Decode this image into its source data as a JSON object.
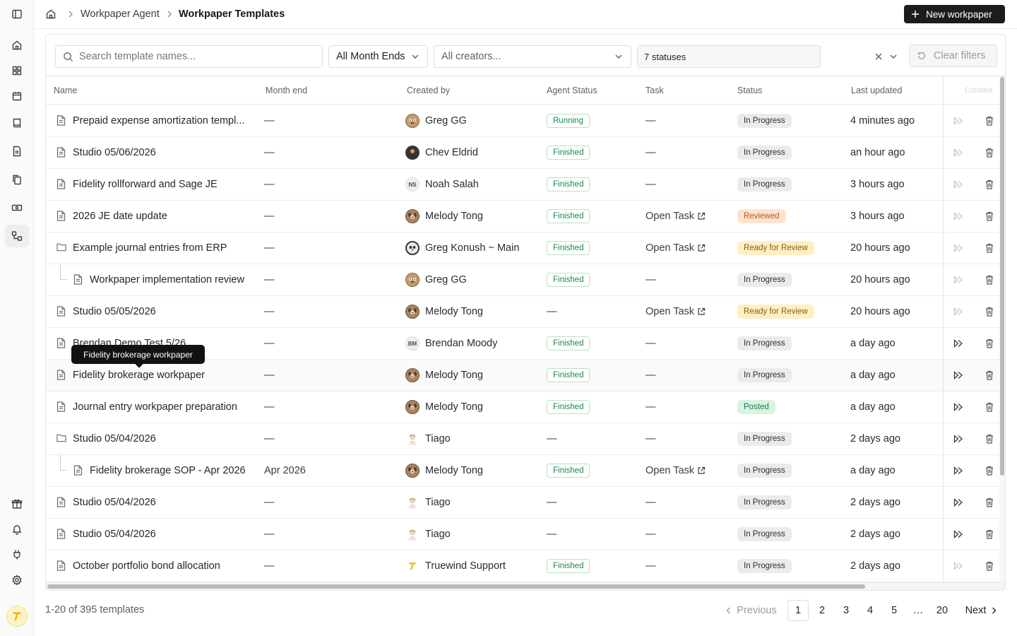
{
  "breadcrumb": {
    "parent": "Workpaper Agent",
    "current": "Workpaper Templates"
  },
  "header": {
    "new_button": "New workpaper"
  },
  "filters": {
    "search_placeholder": "Search template names...",
    "month_end": "All Month Ends",
    "creators_placeholder": "All creators...",
    "statuses": "7 statuses",
    "clear": "Clear filters"
  },
  "columns": {
    "name": "Name",
    "month_end": "Month end",
    "created_by": "Created by",
    "agent_status": "Agent Status",
    "task": "Task",
    "status": "Status",
    "last_updated": "Last updated",
    "created": "Created"
  },
  "rows": [
    {
      "icon": "document-icon",
      "name": "Prepaid expense amortization templ...",
      "month_end": "—",
      "creator": "Greg GG",
      "avatar": "monkey",
      "agent_status": "Running",
      "task": "—",
      "status": "In Progress",
      "updated": "4 minutes ago"
    },
    {
      "icon": "document-icon",
      "name": "Studio 05/06/2026",
      "month_end": "—",
      "creator": "Chev Eldrid",
      "avatar": "photo",
      "agent_status": "Finished",
      "task": "—",
      "status": "In Progress",
      "updated": "an hour ago"
    },
    {
      "icon": "document-icon",
      "name": "Fidelity rollforward and Sage JE",
      "month_end": "—",
      "creator": "Noah Salah",
      "avatar": "NS",
      "agent_status": "Finished",
      "task": "—",
      "status": "In Progress",
      "updated": "3 hours ago"
    },
    {
      "icon": "document-icon",
      "name": "2026 JE date update",
      "month_end": "—",
      "creator": "Melody Tong",
      "avatar": "dog",
      "agent_status": "Finished",
      "task": "Open Task",
      "status": "Reviewed",
      "updated": "3 hours ago"
    },
    {
      "icon": "folder-icon",
      "name": "Example journal entries from ERP",
      "month_end": "—",
      "creator": "Greg Konush ~ Main",
      "avatar": "panda",
      "agent_status": "Finished",
      "task": "Open Task",
      "status": "Ready for Review",
      "updated": "20 hours ago"
    },
    {
      "icon": "document-icon",
      "child": true,
      "name": "Workpaper implementation review",
      "month_end": "—",
      "creator": "Greg GG",
      "avatar": "monkey",
      "agent_status": "Finished",
      "task": "—",
      "status": "In Progress",
      "updated": "20 hours ago"
    },
    {
      "icon": "document-icon",
      "name": "Studio 05/05/2026",
      "month_end": "—",
      "creator": "Melody Tong",
      "avatar": "dog",
      "agent_status": "—",
      "task": "Open Task",
      "status": "Ready for Review",
      "updated": "20 hours ago"
    },
    {
      "icon": "document-icon",
      "name": "Brendan Demo Test 5/26",
      "month_end": "—",
      "creator": "Brendan Moody",
      "avatar": "BM",
      "agent_status": "Finished",
      "task": "—",
      "status": "In Progress",
      "updated": "a day ago"
    },
    {
      "icon": "document-icon",
      "name": "Fidelity brokerage workpaper",
      "month_end": "—",
      "creator": "Melody Tong",
      "avatar": "dog",
      "agent_status": "Finished",
      "task": "—",
      "status": "In Progress",
      "updated": "a day ago"
    },
    {
      "icon": "document-icon",
      "name": "Journal entry workpaper preparation",
      "month_end": "—",
      "creator": "Melody Tong",
      "avatar": "dog",
      "agent_status": "Finished",
      "task": "—",
      "status": "Posted",
      "updated": "a day ago"
    },
    {
      "icon": "folder-icon",
      "name": "Studio 05/04/2026",
      "month_end": "—",
      "creator": "Tiago",
      "avatar": "person",
      "agent_status": "—",
      "task": "—",
      "status": "In Progress",
      "updated": "2 days ago"
    },
    {
      "icon": "document-icon",
      "child": true,
      "name": "Fidelity brokerage SOP - Apr 2026",
      "month_end": "Apr 2026",
      "creator": "Melody Tong",
      "avatar": "dog",
      "agent_status": "Finished",
      "task": "Open Task",
      "status": "In Progress",
      "updated": "a day ago"
    },
    {
      "icon": "document-icon",
      "name": "Studio 05/04/2026",
      "month_end": "—",
      "creator": "Tiago",
      "avatar": "person",
      "agent_status": "—",
      "task": "—",
      "status": "In Progress",
      "updated": "2 days ago"
    },
    {
      "icon": "document-icon",
      "name": "Studio 05/04/2026",
      "month_end": "—",
      "creator": "Tiago",
      "avatar": "person",
      "agent_status": "—",
      "task": "—",
      "status": "In Progress",
      "updated": "2 days ago"
    },
    {
      "icon": "document-icon",
      "name": "October portfolio bond allocation",
      "month_end": "—",
      "creator": "Truewind Support",
      "avatar": "logo",
      "agent_status": "Finished",
      "task": "—",
      "status": "In Progress",
      "updated": "2 days ago"
    }
  ],
  "tooltip": "Fidelity brokerage workpaper",
  "footer": {
    "count": "1-20 of 395 templates",
    "previous": "Previous",
    "next": "Next",
    "pages": [
      "1",
      "2",
      "3",
      "4",
      "5",
      "…",
      "20"
    ]
  }
}
